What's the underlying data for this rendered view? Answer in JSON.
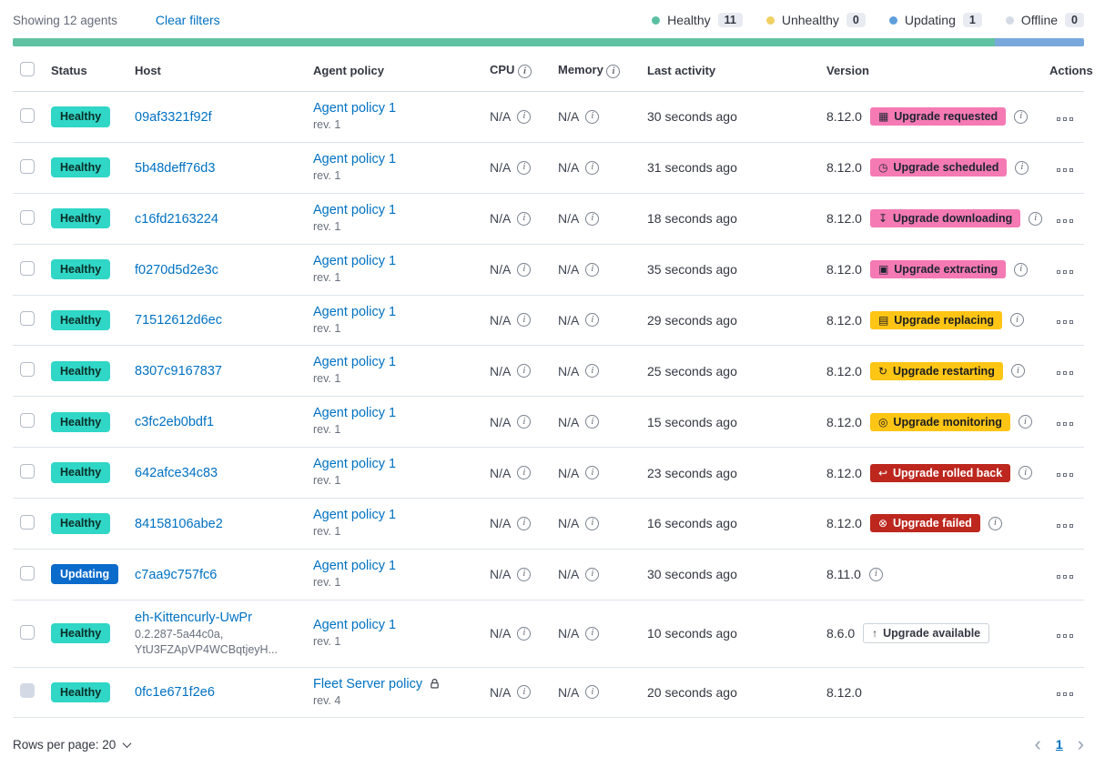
{
  "header": {
    "showing": "Showing 12 agents",
    "clear_filters": "Clear filters",
    "legend": [
      {
        "label": "Healthy",
        "count": "11",
        "dot": "#5bc0a2"
      },
      {
        "label": "Unhealthy",
        "count": "0",
        "dot": "#f0d060"
      },
      {
        "label": "Updating",
        "count": "1",
        "dot": "#5e9fdb"
      },
      {
        "label": "Offline",
        "count": "0",
        "dot": "#d5dbe5"
      }
    ]
  },
  "health_bar": {
    "segments": [
      {
        "name": "healthy",
        "value": 11,
        "color": "#60c2a3"
      },
      {
        "name": "updating",
        "value": 1,
        "color": "#79a8dc"
      }
    ]
  },
  "table": {
    "columns": [
      {
        "label": "Status"
      },
      {
        "label": "Host"
      },
      {
        "label": "Agent policy"
      },
      {
        "label": "CPU",
        "info": true
      },
      {
        "label": "Memory",
        "info": true
      },
      {
        "label": "Last activity"
      },
      {
        "label": "Version"
      },
      {
        "label": "Actions"
      }
    ],
    "rows": [
      {
        "status": "Healthy",
        "variant": "healthy",
        "host": "09af3321f92f",
        "host_sub": null,
        "policy": "Agent policy 1",
        "rev": "rev. 1",
        "policy_locked": false,
        "cpu": "N/A",
        "memory": "N/A",
        "last_activity": "30 seconds ago",
        "version": "8.12.0",
        "upgrade": {
          "label": "Upgrade requested",
          "variant": "accent",
          "icon": "calendar-icon"
        },
        "version_info": true,
        "checkbox_disabled": false
      },
      {
        "status": "Healthy",
        "variant": "healthy",
        "host": "5b48deff76d3",
        "host_sub": null,
        "policy": "Agent policy 1",
        "rev": "rev. 1",
        "policy_locked": false,
        "cpu": "N/A",
        "memory": "N/A",
        "last_activity": "31 seconds ago",
        "version": "8.12.0",
        "upgrade": {
          "label": "Upgrade scheduled",
          "variant": "accent",
          "icon": "clock-icon"
        },
        "version_info": true,
        "checkbox_disabled": false
      },
      {
        "status": "Healthy",
        "variant": "healthy",
        "host": "c16fd2163224",
        "host_sub": null,
        "policy": "Agent policy 1",
        "rev": "rev. 1",
        "policy_locked": false,
        "cpu": "N/A",
        "memory": "N/A",
        "last_activity": "18 seconds ago",
        "version": "8.12.0",
        "upgrade": {
          "label": "Upgrade downloading",
          "variant": "accent",
          "icon": "download-icon"
        },
        "version_info": true,
        "checkbox_disabled": false
      },
      {
        "status": "Healthy",
        "variant": "healthy",
        "host": "f0270d5d2e3c",
        "host_sub": null,
        "policy": "Agent policy 1",
        "rev": "rev. 1",
        "policy_locked": false,
        "cpu": "N/A",
        "memory": "N/A",
        "last_activity": "35 seconds ago",
        "version": "8.12.0",
        "upgrade": {
          "label": "Upgrade extracting",
          "variant": "accent",
          "icon": "package-icon"
        },
        "version_info": true,
        "checkbox_disabled": false
      },
      {
        "status": "Healthy",
        "variant": "healthy",
        "host": "71512612d6ec",
        "host_sub": null,
        "policy": "Agent policy 1",
        "rev": "rev. 1",
        "policy_locked": false,
        "cpu": "N/A",
        "memory": "N/A",
        "last_activity": "29 seconds ago",
        "version": "8.12.0",
        "upgrade": {
          "label": "Upgrade replacing",
          "variant": "warning",
          "icon": "document-icon"
        },
        "version_info": true,
        "checkbox_disabled": false
      },
      {
        "status": "Healthy",
        "variant": "healthy",
        "host": "8307c9167837",
        "host_sub": null,
        "policy": "Agent policy 1",
        "rev": "rev. 1",
        "policy_locked": false,
        "cpu": "N/A",
        "memory": "N/A",
        "last_activity": "25 seconds ago",
        "version": "8.12.0",
        "upgrade": {
          "label": "Upgrade restarting",
          "variant": "warning",
          "icon": "refresh-icon"
        },
        "version_info": true,
        "checkbox_disabled": false
      },
      {
        "status": "Healthy",
        "variant": "healthy",
        "host": "c3fc2eb0bdf1",
        "host_sub": null,
        "policy": "Agent policy 1",
        "rev": "rev. 1",
        "policy_locked": false,
        "cpu": "N/A",
        "memory": "N/A",
        "last_activity": "15 seconds ago",
        "version": "8.12.0",
        "upgrade": {
          "label": "Upgrade monitoring",
          "variant": "warning",
          "icon": "inspect-icon"
        },
        "version_info": true,
        "checkbox_disabled": false
      },
      {
        "status": "Healthy",
        "variant": "healthy",
        "host": "642afce34c83",
        "host_sub": null,
        "policy": "Agent policy 1",
        "rev": "rev. 1",
        "policy_locked": false,
        "cpu": "N/A",
        "memory": "N/A",
        "last_activity": "23 seconds ago",
        "version": "8.12.0",
        "upgrade": {
          "label": "Upgrade rolled back",
          "variant": "danger",
          "icon": "return-icon"
        },
        "version_info": true,
        "checkbox_disabled": false
      },
      {
        "status": "Healthy",
        "variant": "healthy",
        "host": "84158106abe2",
        "host_sub": null,
        "policy": "Agent policy 1",
        "rev": "rev. 1",
        "policy_locked": false,
        "cpu": "N/A",
        "memory": "N/A",
        "last_activity": "16 seconds ago",
        "version": "8.12.0",
        "upgrade": {
          "label": "Upgrade failed",
          "variant": "danger",
          "icon": "error-icon"
        },
        "version_info": true,
        "checkbox_disabled": false
      },
      {
        "status": "Updating",
        "variant": "updating",
        "host": "c7aa9c757fc6",
        "host_sub": null,
        "policy": "Agent policy 1",
        "rev": "rev. 1",
        "policy_locked": false,
        "cpu": "N/A",
        "memory": "N/A",
        "last_activity": "30 seconds ago",
        "version": "8.11.0",
        "upgrade": null,
        "version_info": true,
        "checkbox_disabled": false
      },
      {
        "status": "Healthy",
        "variant": "healthy",
        "host": "eh-Kittencurly-UwPr",
        "host_sub": "0.2.287-5a44c0a, YtU3FZApVP4WCBqtjeyH...",
        "policy": "Agent policy 1",
        "rev": "rev. 1",
        "policy_locked": false,
        "cpu": "N/A",
        "memory": "N/A",
        "last_activity": "10 seconds ago",
        "version": "8.6.0",
        "upgrade": {
          "label": "Upgrade available",
          "variant": "hollow",
          "icon": "arrow-up-icon"
        },
        "version_info": false,
        "checkbox_disabled": false
      },
      {
        "status": "Healthy",
        "variant": "healthy",
        "host": "0fc1e671f2e6",
        "host_sub": null,
        "policy": "Fleet Server policy",
        "rev": "rev. 4",
        "policy_locked": true,
        "cpu": "N/A",
        "memory": "N/A",
        "last_activity": "20 seconds ago",
        "version": "8.12.0",
        "upgrade": null,
        "version_info": false,
        "checkbox_disabled": true
      }
    ]
  },
  "footer": {
    "rows_per_page": "Rows per page: 20",
    "page": "1"
  },
  "colors": {
    "link": "#0071c2",
    "healthy_badge": "#30d6c6",
    "updating_badge": "#0b6bcb",
    "accent_badge": "#f57ab4",
    "warning_badge": "#fec514",
    "danger_badge": "#bd271e"
  }
}
